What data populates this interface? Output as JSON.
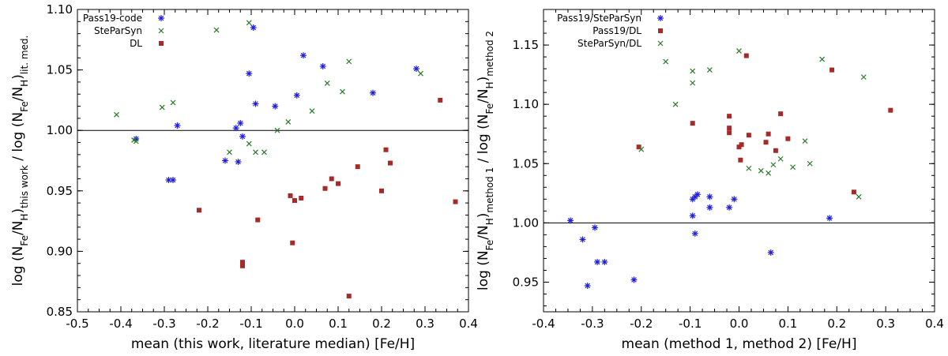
{
  "chart_data": [
    {
      "type": "scatter",
      "title": "",
      "xlabel": "mean (this work, literature median) [Fe/H]",
      "ylabel_parts": {
        "log": "log",
        "nfe": "N",
        "fe": "Fe",
        "nh": "N",
        "h": "H",
        "sub1": "this work",
        "sub2": "lit. med."
      },
      "xlim": [
        -0.5,
        0.4
      ],
      "ylim": [
        0.85,
        1.1
      ],
      "xticks": [
        -0.5,
        -0.4,
        -0.3,
        -0.2,
        -0.1,
        0.0,
        0.1,
        0.2,
        0.3,
        0.4
      ],
      "xtick_labels": [
        "-0.5",
        "-0.4",
        "-0.3",
        "-0.2",
        "-0.1",
        "0.0",
        "0.1",
        "0.2",
        "0.3",
        "0.4"
      ],
      "yticks": [
        0.85,
        0.9,
        0.95,
        1.0,
        1.05,
        1.1
      ],
      "ytick_labels": [
        "0.85",
        "0.90",
        "0.95",
        "1.00",
        "1.05",
        "1.10"
      ],
      "reference_line": 1.0,
      "legend_position": "top-left",
      "series": [
        {
          "name": "Pass19-code",
          "marker": "asterisk",
          "color": "#1f1fdd",
          "points": [
            [
              -0.365,
              0.993
            ],
            [
              -0.27,
              1.004
            ],
            [
              -0.29,
              0.959
            ],
            [
              -0.28,
              0.959
            ],
            [
              -0.16,
              0.975
            ],
            [
              -0.13,
              0.974
            ],
            [
              -0.135,
              1.002
            ],
            [
              -0.125,
              1.006
            ],
            [
              -0.12,
              0.995
            ],
            [
              -0.105,
              1.047
            ],
            [
              -0.09,
              1.022
            ],
            [
              -0.095,
              1.085
            ],
            [
              -0.045,
              1.02
            ],
            [
              0.005,
              1.029
            ],
            [
              0.02,
              1.062
            ],
            [
              0.065,
              1.053
            ],
            [
              0.18,
              1.031
            ],
            [
              0.28,
              1.051
            ]
          ]
        },
        {
          "name": "SteParSyn",
          "marker": "x",
          "color": "#2a7a2a",
          "points": [
            [
              -0.41,
              1.013
            ],
            [
              -0.37,
              0.992
            ],
            [
              -0.365,
              0.991
            ],
            [
              -0.305,
              1.019
            ],
            [
              -0.28,
              1.023
            ],
            [
              -0.18,
              1.083
            ],
            [
              -0.15,
              0.982
            ],
            [
              -0.105,
              0.989
            ],
            [
              -0.105,
              1.089
            ],
            [
              -0.09,
              0.982
            ],
            [
              -0.07,
              0.982
            ],
            [
              -0.04,
              1.0
            ],
            [
              -0.015,
              1.007
            ],
            [
              0.04,
              1.016
            ],
            [
              0.075,
              1.039
            ],
            [
              0.11,
              1.032
            ],
            [
              0.125,
              1.057
            ],
            [
              0.29,
              1.047
            ]
          ]
        },
        {
          "name": "DL",
          "marker": "square",
          "color": "#a52a2a",
          "points": [
            [
              -0.22,
              0.934
            ],
            [
              -0.12,
              0.891
            ],
            [
              -0.12,
              0.888
            ],
            [
              -0.085,
              0.926
            ],
            [
              -0.01,
              0.946
            ],
            [
              -0.005,
              0.907
            ],
            [
              0.0,
              0.942
            ],
            [
              0.015,
              0.944
            ],
            [
              0.07,
              0.952
            ],
            [
              0.085,
              0.96
            ],
            [
              0.1,
              0.956
            ],
            [
              0.145,
              0.97
            ],
            [
              0.125,
              0.863
            ],
            [
              0.2,
              0.95
            ],
            [
              0.21,
              0.984
            ],
            [
              0.22,
              0.973
            ],
            [
              0.335,
              1.025
            ],
            [
              0.37,
              0.941
            ]
          ]
        }
      ]
    },
    {
      "type": "scatter",
      "title": "",
      "xlabel": "mean (method 1, method 2) [Fe/H]",
      "ylabel_parts": {
        "log": "log",
        "nfe": "N",
        "fe": "Fe",
        "nh": "N",
        "h": "H",
        "sub1": "method 1",
        "sub2": "method 2"
      },
      "xlim": [
        -0.4,
        0.4
      ],
      "ylim": [
        0.925,
        1.18
      ],
      "xticks": [
        -0.4,
        -0.3,
        -0.2,
        -0.1,
        0.0,
        0.1,
        0.2,
        0.3,
        0.4
      ],
      "xtick_labels": [
        "-0.4",
        "-0.3",
        "-0.2",
        "-0.1",
        "0.0",
        "0.1",
        "0.2",
        "0.3",
        "0.4"
      ],
      "yticks": [
        0.95,
        1.0,
        1.05,
        1.1,
        1.15
      ],
      "ytick_labels": [
        "0.95",
        "1.00",
        "1.05",
        "1.10",
        "1.15"
      ],
      "reference_line": 1.0,
      "legend_position": "top-left",
      "series": [
        {
          "name": "Pass19/SteParSyn",
          "marker": "asterisk",
          "color": "#1f1fdd",
          "points": [
            [
              -0.345,
              1.002
            ],
            [
              -0.32,
              0.986
            ],
            [
              -0.295,
              0.996
            ],
            [
              -0.29,
              0.967
            ],
            [
              -0.275,
              0.967
            ],
            [
              -0.31,
              0.947
            ],
            [
              -0.215,
              0.952
            ],
            [
              -0.095,
              1.006
            ],
            [
              -0.095,
              1.02
            ],
            [
              -0.09,
              1.022
            ],
            [
              -0.085,
              1.024
            ],
            [
              -0.09,
              0.991
            ],
            [
              -0.06,
              1.022
            ],
            [
              -0.06,
              1.013
            ],
            [
              -0.02,
              1.013
            ],
            [
              -0.01,
              1.02
            ],
            [
              0.065,
              0.975
            ],
            [
              0.185,
              1.004
            ]
          ]
        },
        {
          "name": "Pass19/DL",
          "marker": "square",
          "color": "#a52a2a",
          "points": [
            [
              -0.205,
              1.064
            ],
            [
              -0.095,
              1.084
            ],
            [
              -0.02,
              1.09
            ],
            [
              -0.02,
              1.08
            ],
            [
              -0.02,
              1.076
            ],
            [
              0.0,
              1.064
            ],
            [
              0.003,
              1.053
            ],
            [
              0.005,
              1.066
            ],
            [
              0.015,
              1.141
            ],
            [
              0.02,
              1.074
            ],
            [
              0.055,
              1.068
            ],
            [
              0.06,
              1.075
            ],
            [
              0.075,
              1.061
            ],
            [
              0.085,
              1.092
            ],
            [
              0.1,
              1.071
            ],
            [
              0.19,
              1.129
            ],
            [
              0.235,
              1.026
            ],
            [
              0.31,
              1.095
            ]
          ]
        },
        {
          "name": "SteParSyn/DL",
          "marker": "x",
          "color": "#2a7a2a",
          "points": [
            [
              -0.2,
              1.062
            ],
            [
              -0.15,
              1.136
            ],
            [
              -0.13,
              1.1
            ],
            [
              -0.095,
              1.128
            ],
            [
              -0.095,
              1.118
            ],
            [
              -0.06,
              1.129
            ],
            [
              0.0,
              1.145
            ],
            [
              0.02,
              1.046
            ],
            [
              0.045,
              1.044
            ],
            [
              0.06,
              1.042
            ],
            [
              0.07,
              1.049
            ],
            [
              0.085,
              1.054
            ],
            [
              0.11,
              1.047
            ],
            [
              0.135,
              1.069
            ],
            [
              0.145,
              1.05
            ],
            [
              0.17,
              1.138
            ],
            [
              0.245,
              1.022
            ],
            [
              0.255,
              1.123
            ]
          ]
        }
      ]
    }
  ]
}
